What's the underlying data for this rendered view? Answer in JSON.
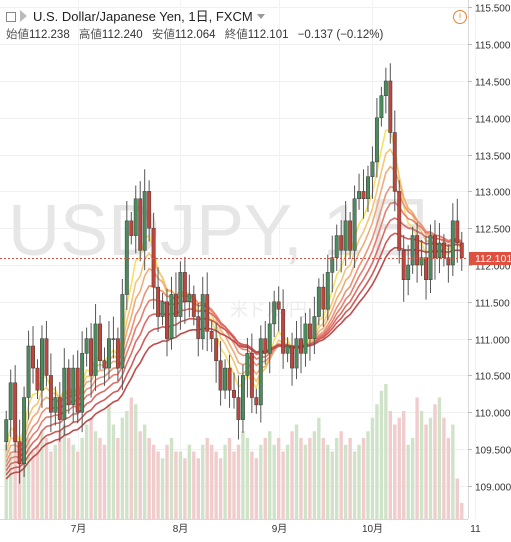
{
  "header": {
    "symbol_title": "U.S. Dollar/Japanese Yen, 1日, FXCM",
    "open_label": "始値",
    "open_value": "112.238",
    "high_label": "高値",
    "high_value": "112.240",
    "low_label": "安値",
    "low_value": "112.064",
    "close_label": "終値",
    "close_value": "112.101",
    "change": "−0.137 (−0.12%)"
  },
  "watermark": "USDJPY, 1日",
  "watermark_sub": "米ドル/円",
  "colors": {
    "up": "#4a8c5c",
    "down": "#c0453a",
    "price_line": "#e05040",
    "volume": "#cfe3c8",
    "volume_down": "#f0cccc",
    "ribbon": [
      "#f5e06a",
      "#f3c77a",
      "#efad7a",
      "#ea9477",
      "#e47f71",
      "#dc6c65",
      "#cf5b58",
      "#be4c4b"
    ]
  },
  "chart_data": {
    "type": "candlestick",
    "ylim": [
      108.55,
      115.6
    ],
    "y_ticks": [
      "115.500",
      "115.000",
      "114.500",
      "114.000",
      "113.500",
      "113.000",
      "112.500",
      "112.000",
      "111.500",
      "111.000",
      "110.500",
      "110.000",
      "109.500",
      "109.000"
    ],
    "y_tick_values": [
      115.5,
      115.0,
      114.5,
      114.0,
      113.5,
      113.0,
      112.5,
      112.0,
      111.5,
      111.0,
      110.5,
      110.0,
      109.5,
      109.0
    ],
    "x_labels": [
      {
        "label": "7月",
        "index": 16
      },
      {
        "label": "8月",
        "index": 39
      },
      {
        "label": "9月",
        "index": 61
      },
      {
        "label": "10月",
        "index": 82
      },
      {
        "label": "11",
        "index": 105
      }
    ],
    "last_price": "112.101",
    "last_price_value": 112.101,
    "closes": [
      109.9,
      110.4,
      109.6,
      109.3,
      110.2,
      110.9,
      110.6,
      110.3,
      111.0,
      110.5,
      110.0,
      110.2,
      109.9,
      110.6,
      110.1,
      110.6,
      110.0,
      110.8,
      111.0,
      110.5,
      111.2,
      110.7,
      110.6,
      111.0,
      111.0,
      110.6,
      111.6,
      112.6,
      112.4,
      112.9,
      112.2,
      113.0,
      112.5,
      111.7,
      111.3,
      111.5,
      111.0,
      111.6,
      111.3,
      111.9,
      111.5,
      111.6,
      111.3,
      111.0,
      111.6,
      111.1,
      111.0,
      110.7,
      110.3,
      110.6,
      110.3,
      110.2,
      109.9,
      110.5,
      110.8,
      110.2,
      110.1,
      111.0,
      110.8,
      111.2,
      111.5,
      111.4,
      110.8,
      110.9,
      110.6,
      111.0,
      110.8,
      111.2,
      111.0,
      111.3,
      111.7,
      111.4,
      111.9,
      112.1,
      112.4,
      112.2,
      112.6,
      112.2,
      112.9,
      113.0,
      112.9,
      113.2,
      113.4,
      114.0,
      114.3,
      114.5,
      113.8,
      113.0,
      112.2,
      111.8,
      112.0,
      112.4,
      112.0,
      112.1,
      111.8,
      112.4,
      112.1,
      112.3,
      112.1,
      112.0,
      112.6,
      112.3,
      112.1
    ],
    "volumes": [
      0.55,
      0.5,
      0.6,
      0.45,
      0.7,
      0.6,
      0.5,
      0.55,
      0.65,
      0.6,
      0.5,
      0.55,
      0.65,
      0.7,
      0.6,
      0.55,
      0.5,
      0.6,
      0.7,
      0.75,
      0.65,
      0.6,
      0.55,
      0.85,
      0.7,
      0.6,
      0.75,
      0.8,
      0.9,
      0.85,
      0.65,
      0.7,
      0.6,
      0.55,
      0.5,
      0.45,
      0.55,
      0.6,
      0.5,
      0.5,
      0.45,
      0.55,
      0.5,
      0.45,
      0.55,
      0.6,
      0.55,
      0.5,
      0.45,
      0.55,
      0.6,
      0.5,
      0.55,
      0.65,
      0.6,
      0.5,
      0.45,
      0.55,
      0.6,
      0.65,
      0.55,
      0.6,
      0.5,
      0.55,
      0.65,
      0.7,
      0.6,
      0.55,
      0.6,
      0.65,
      0.75,
      0.6,
      0.55,
      0.5,
      0.6,
      0.65,
      0.55,
      0.6,
      0.5,
      0.55,
      0.6,
      0.65,
      0.75,
      0.85,
      0.95,
      1.0,
      0.8,
      0.7,
      0.75,
      0.8,
      0.55,
      0.6,
      0.9,
      0.8,
      0.7,
      0.75,
      0.85,
      0.9,
      0.75,
      0.6,
      0.7,
      0.3,
      0.12
    ]
  }
}
